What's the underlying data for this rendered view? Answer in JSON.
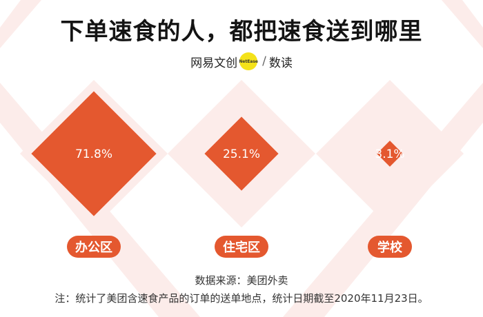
{
  "title": "下单速食的人，都把速食送到哪里",
  "brand": {
    "part1": "网易文创",
    "badge": "NetEase",
    "separator": "/",
    "part2": "数读"
  },
  "chart_data": {
    "type": "bar",
    "categories": [
      "办公区",
      "住宅区",
      "学校"
    ],
    "values": [
      71.8,
      25.1,
      3.1
    ],
    "value_labels": [
      "71.8%",
      "25.1%",
      "3.1%"
    ],
    "unit": "%",
    "title": "下单速食的人，都把速食送到哪里",
    "colors": {
      "mark": "#e4582f",
      "track": "#fcecea",
      "label_pill": "#e4582f",
      "background_stripes": "#fcecea"
    }
  },
  "footer": {
    "source": "数据来源：美团外卖",
    "note": "注：统计了美团含速食产品的订单的送单地点，统计日期截至2020年11月23日。"
  }
}
